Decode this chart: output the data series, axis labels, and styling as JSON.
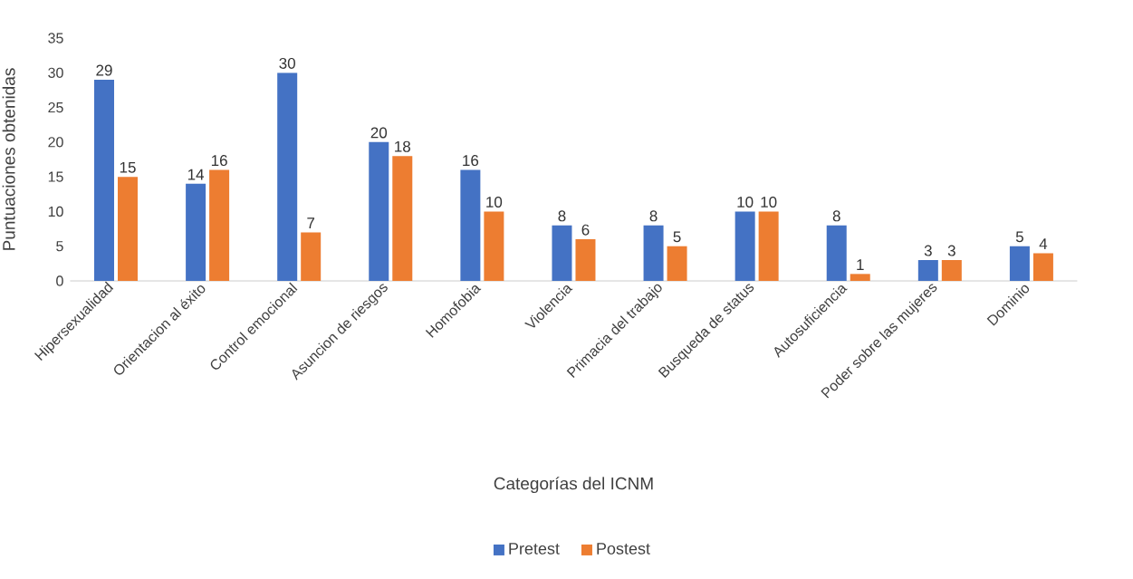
{
  "chart_data": {
    "type": "bar",
    "xlabel": "Categorías del ICNM",
    "ylabel": "Puntuaciones obtenidas",
    "categories": [
      "Hipersexualidad",
      "Orientacion al éxito",
      "Control emocional",
      "Asuncion de riesgos",
      "Homofobia",
      "Violencia",
      "Primacia del trabajo",
      "Busqueda de status",
      "Autosuficiencia",
      "Poder sobre las mujeres",
      "Dominio"
    ],
    "series": [
      {
        "name": "Pretest",
        "color": "#4472c4",
        "values": [
          29,
          14,
          30,
          20,
          16,
          8,
          8,
          10,
          8,
          3,
          5
        ]
      },
      {
        "name": "Postest",
        "color": "#ed7d31",
        "values": [
          15,
          16,
          7,
          18,
          10,
          6,
          5,
          10,
          1,
          3,
          4
        ]
      }
    ],
    "ylim": [
      0,
      35
    ],
    "yticks": [
      0,
      5,
      10,
      15,
      20,
      25,
      30,
      35
    ],
    "data_labels": true,
    "legend": "bottom",
    "grid": false
  }
}
